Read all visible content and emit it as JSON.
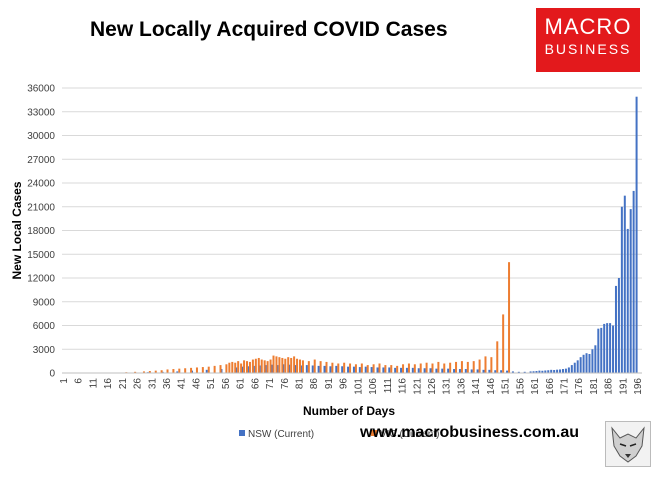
{
  "title": "New Locally Acquired COVID Cases",
  "logo": {
    "line1": "MACRO",
    "line2": "BUSINESS"
  },
  "footer": "www.macrobusiness.com.au",
  "chart_data": {
    "type": "bar",
    "title": "New Locally Acquired COVID Cases",
    "xlabel": "Number of Days",
    "ylabel": "New Local Cases",
    "ylim": [
      0,
      36000
    ],
    "yticks": [
      0,
      3000,
      6000,
      9000,
      12000,
      15000,
      18000,
      21000,
      24000,
      27000,
      30000,
      33000,
      36000
    ],
    "x_tick_labels": [
      "1",
      "6",
      "11",
      "16",
      "21",
      "26",
      "31",
      "36",
      "41",
      "46",
      "51",
      "56",
      "61",
      "66",
      "71",
      "76",
      "81",
      "86",
      "91",
      "96",
      "101",
      "106",
      "111",
      "116",
      "121",
      "126",
      "131",
      "136",
      "141",
      "146",
      "151",
      "156",
      "161",
      "166",
      "171",
      "176",
      "181",
      "186",
      "191",
      "196"
    ],
    "grid": "horizontal",
    "legend_position": "bottom",
    "series": [
      {
        "name": "NSW (Current)",
        "color": "#4472c4",
        "x": [
          21,
          30,
          35,
          40,
          45,
          50,
          55,
          60,
          62,
          64,
          66,
          68,
          70,
          72,
          74,
          76,
          78,
          80,
          82,
          84,
          86,
          88,
          90,
          92,
          94,
          96,
          98,
          100,
          102,
          104,
          106,
          108,
          110,
          112,
          114,
          116,
          118,
          120,
          122,
          124,
          126,
          128,
          130,
          132,
          134,
          136,
          138,
          140,
          142,
          144,
          146,
          148,
          150,
          152,
          154,
          156,
          158,
          160,
          161,
          162,
          163,
          164,
          165,
          166,
          167,
          168,
          169,
          170,
          171,
          172,
          173,
          174,
          175,
          176,
          177,
          178,
          179,
          180,
          181,
          182,
          183,
          184,
          185,
          186,
          187,
          188,
          189,
          190,
          191,
          192,
          193,
          194,
          195,
          196,
          197
        ],
        "values": [
          50,
          100,
          150,
          200,
          300,
          400,
          500,
          700,
          800,
          850,
          900,
          950,
          1000,
          1050,
          1000,
          1100,
          1050,
          1000,
          950,
          1000,
          950,
          900,
          900,
          850,
          900,
          850,
          800,
          800,
          750,
          800,
          750,
          700,
          700,
          700,
          650,
          650,
          650,
          650,
          600,
          600,
          600,
          550,
          550,
          550,
          500,
          500,
          500,
          450,
          450,
          400,
          400,
          350,
          350,
          300,
          200,
          150,
          150,
          200,
          220,
          250,
          300,
          280,
          320,
          350,
          400,
          380,
          420,
          450,
          500,
          550,
          700,
          1000,
          1300,
          1600,
          2000,
          2300,
          2500,
          2400,
          3000,
          3500,
          5600,
          5700,
          6200,
          6300,
          6300,
          6000,
          11000,
          12000,
          21000,
          22400,
          18200,
          20700,
          23000,
          34900,
          50
        ]
      },
      {
        "name": "VIC (Current)",
        "color": "#ed7d31",
        "x": [
          6,
          12,
          17,
          22,
          25,
          28,
          30,
          32,
          34,
          36,
          38,
          40,
          42,
          44,
          46,
          48,
          50,
          52,
          54,
          56,
          57,
          58,
          59,
          60,
          61,
          62,
          63,
          64,
          65,
          66,
          67,
          68,
          69,
          70,
          71,
          72,
          73,
          74,
          75,
          76,
          77,
          78,
          79,
          80,
          81,
          82,
          84,
          86,
          88,
          90,
          92,
          94,
          96,
          98,
          100,
          102,
          104,
          106,
          108,
          110,
          112,
          114,
          116,
          118,
          120,
          122,
          124,
          126,
          128,
          130,
          132,
          134,
          136,
          138,
          140,
          142,
          144,
          146,
          148,
          150,
          152
        ],
        "values": [
          20,
          30,
          50,
          100,
          150,
          200,
          250,
          300,
          350,
          450,
          500,
          550,
          600,
          650,
          700,
          750,
          800,
          900,
          1000,
          1100,
          1300,
          1400,
          1300,
          1500,
          1200,
          1600,
          1500,
          1400,
          1700,
          1800,
          1900,
          1700,
          1600,
          1500,
          1700,
          2200,
          2100,
          2000,
          1900,
          1800,
          2000,
          1900,
          2100,
          1800,
          1700,
          1600,
          1500,
          1700,
          1500,
          1400,
          1300,
          1200,
          1300,
          1200,
          1100,
          1200,
          1000,
          1100,
          1200,
          1000,
          1000,
          900,
          1100,
          1200,
          1100,
          1200,
          1300,
          1200,
          1400,
          1200,
          1300,
          1400,
          1500,
          1400,
          1500,
          1700,
          2100,
          2000,
          4000,
          7400,
          14000
        ]
      }
    ]
  }
}
